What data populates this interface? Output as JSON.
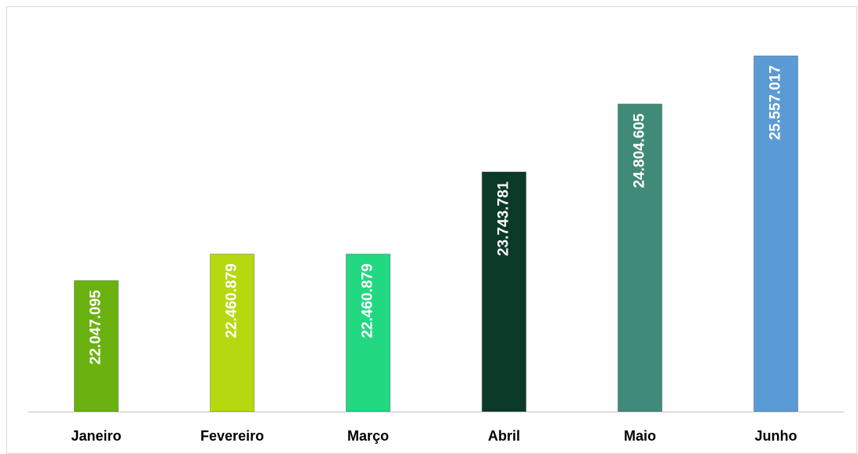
{
  "chart_data": {
    "type": "bar",
    "categories": [
      "Janeiro",
      "Fevereiro",
      "Março",
      "Abril",
      "Maio",
      "Junho"
    ],
    "values": [
      22047095,
      22460879,
      22460879,
      23743781,
      24804605,
      25557017
    ],
    "value_labels": [
      "22.047.095",
      "22.460.879",
      "22.460.879",
      "23.743.781",
      "24.804.605",
      "25.557.017"
    ],
    "colors": [
      "#69b20f",
      "#b4d90f",
      "#22d880",
      "#0b3a28",
      "#3f8a78",
      "#5b9bd5"
    ],
    "ylim": [
      20000000,
      26000000
    ]
  }
}
